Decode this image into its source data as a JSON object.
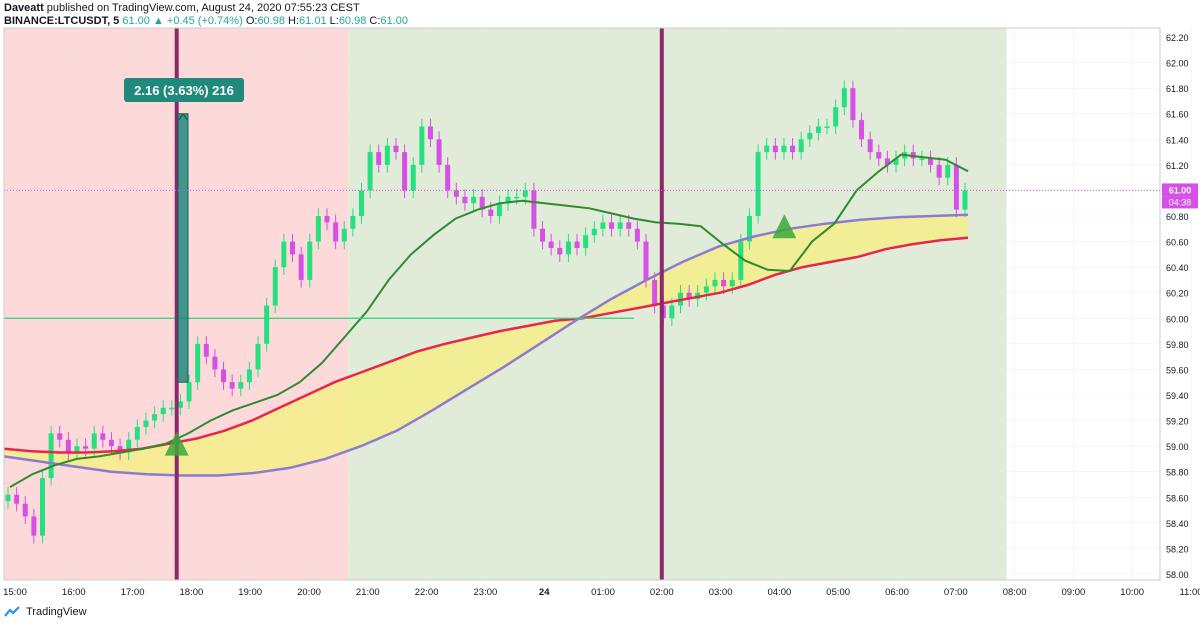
{
  "header": {
    "line1_author": "Daveatt",
    "line1_rest": " published on TradingView.com, August 24, 2020 07:55:23 CEST",
    "symbol": "BINANCE:LTCUSDT, 5",
    "last": "61.00",
    "change": "+0.45 (+0.74%)",
    "o_label": "O:",
    "o": "60.98",
    "h_label": "H:",
    "h": "61.01",
    "l_label": "L:",
    "l": "60.98",
    "c_label": "C:",
    "c": "61.00"
  },
  "footer": {
    "brand": "TradingView"
  },
  "colors": {
    "bg_red": "#fdd9d9",
    "bg_green": "#e0ecd8",
    "up": "#26e07f",
    "down": "#d64fe6",
    "ma_dark_green": "#2e8b2e",
    "ma_red": "#e8254b",
    "ma_purple": "#8e7bd0",
    "fill_yellow": "#f5ef8a",
    "signal_line": "#8b2a6b",
    "measure_box": "#1f8a7c",
    "hline": "#2ed573",
    "last_price_bg": "#d64fe6"
  },
  "chart_data": {
    "type": "line",
    "symbol": "BINANCE:LTCUSDT",
    "ylim": [
      58.0,
      62.2
    ],
    "y_ticks": [
      "58.00",
      "58.20",
      "58.40",
      "58.60",
      "58.80",
      "59.00",
      "59.20",
      "59.40",
      "59.60",
      "59.80",
      "60.00",
      "60.20",
      "60.40",
      "60.60",
      "60.80",
      "61.00",
      "61.20",
      "61.40",
      "61.60",
      "61.80",
      "62.00",
      "62.20"
    ],
    "x_ticks": [
      "15:00",
      "16:00",
      "17:00",
      "18:00",
      "19:00",
      "20:00",
      "21:00",
      "22:00",
      "23:00",
      "24",
      "01:00",
      "02:00",
      "03:00",
      "04:00",
      "05:00",
      "06:00",
      "07:00",
      "08:00",
      "09:00",
      "10:00",
      "11:00"
    ],
    "price_label": "61.00",
    "countdown_label": "04:38",
    "measure_label": "2.16 (3.63%) 216",
    "horizontal_line": 60.0,
    "regions": [
      {
        "color": "red",
        "from": "15:00",
        "to": "20:40"
      },
      {
        "color": "green",
        "from": "20:40",
        "to": "08:00"
      }
    ],
    "signals": [
      {
        "time": "17:45",
        "marker_price": 59.02
      },
      {
        "time": "02:00"
      }
    ],
    "up_markers": [
      {
        "time": "17:45",
        "price": 59.02
      },
      {
        "time": "04:05",
        "price": 60.72
      }
    ],
    "close_series": {
      "name": "",
      "values": [
        58.62,
        58.55,
        58.45,
        58.3,
        58.75,
        59.1,
        59.05,
        58.95,
        59.0,
        58.98,
        59.1,
        59.05,
        59.0,
        58.95,
        59.05,
        59.15,
        59.2,
        59.25,
        59.3,
        59.3,
        59.35,
        59.5,
        59.8,
        59.7,
        59.6,
        59.5,
        59.45,
        59.5,
        59.6,
        59.8,
        60.1,
        60.4,
        60.6,
        60.5,
        60.3,
        60.6,
        60.8,
        60.75,
        60.6,
        60.7,
        60.8,
        61.0,
        61.3,
        61.2,
        61.35,
        61.3,
        61.0,
        61.2,
        61.5,
        61.4,
        61.2,
        61.0,
        60.95,
        60.9,
        60.95,
        60.85,
        60.8,
        60.9,
        60.95,
        60.95,
        61.0,
        60.7,
        60.6,
        60.55,
        60.5,
        60.6,
        60.55,
        60.65,
        60.7,
        60.75,
        60.7,
        60.75,
        60.7,
        60.6,
        60.3,
        60.1,
        60.0,
        60.1,
        60.2,
        60.15,
        60.2,
        60.25,
        60.3,
        60.25,
        60.3,
        60.6,
        60.8,
        61.3,
        61.35,
        61.3,
        61.35,
        61.3,
        61.4,
        61.45,
        61.5,
        61.5,
        61.65,
        61.8,
        61.55,
        61.4,
        61.3,
        61.25,
        61.2,
        61.25,
        61.3,
        61.25,
        61.25,
        61.2,
        61.1,
        61.2,
        60.85,
        61.0
      ]
    },
    "ma_dark_green": {
      "name": "",
      "values": [
        58.68,
        58.78,
        58.85,
        58.9,
        58.92,
        58.95,
        58.98,
        59.02,
        59.1,
        59.2,
        59.28,
        59.34,
        59.4,
        59.5,
        59.65,
        59.85,
        60.05,
        60.3,
        60.5,
        60.65,
        60.78,
        60.85,
        60.9,
        60.92,
        60.9,
        60.88,
        60.86,
        60.82,
        60.78,
        60.75,
        60.74,
        60.72,
        60.58,
        60.45,
        60.38,
        60.37,
        60.6,
        60.74,
        61.0,
        61.15,
        61.28,
        61.26,
        61.24,
        61.15
      ]
    },
    "ma_red": {
      "name": "",
      "values": [
        58.98,
        58.96,
        58.95,
        58.95,
        58.96,
        58.98,
        59.02,
        59.06,
        59.12,
        59.2,
        59.3,
        59.4,
        59.5,
        59.58,
        59.66,
        59.74,
        59.8,
        59.85,
        59.9,
        59.94,
        59.98,
        60.0,
        60.04,
        60.08,
        60.12,
        60.16,
        60.2,
        60.26,
        60.34,
        60.4,
        60.44,
        60.48,
        60.54,
        60.58,
        60.61,
        60.63
      ]
    },
    "ma_purple": {
      "name": "",
      "values": [
        58.92,
        58.88,
        58.84,
        58.8,
        58.78,
        58.77,
        58.77,
        58.79,
        58.83,
        58.9,
        59.0,
        59.12,
        59.28,
        59.45,
        59.62,
        59.8,
        59.98,
        60.15,
        60.3,
        60.44,
        60.56,
        60.64,
        60.7,
        60.74,
        60.77,
        60.79,
        60.8,
        60.81
      ]
    }
  }
}
